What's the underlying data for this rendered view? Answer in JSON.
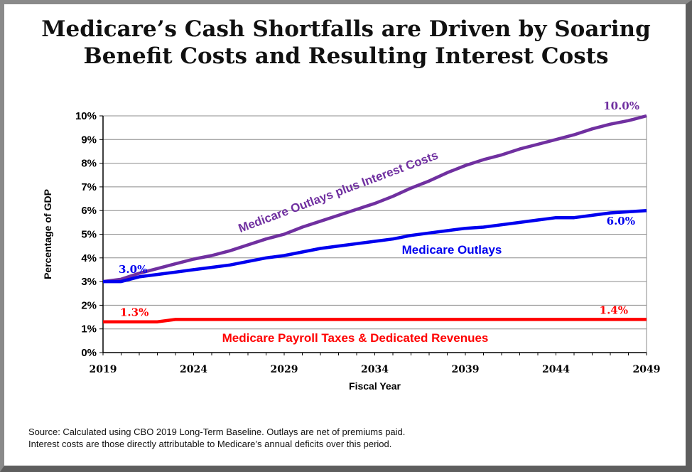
{
  "title": {
    "line1": "Medicare’s Cash Shortfalls are Driven by Soaring",
    "line2": "Benefit Costs and Resulting Interest Costs"
  },
  "source": {
    "line1": "Source: Calculated using CBO 2019 Long-Term Baseline. Outlays are net of premiums paid.",
    "line2": "Interest costs are those directly attributable to Medicare’s annual deficits over this period."
  },
  "chart_data": {
    "type": "line",
    "xlabel": "Fiscal Year",
    "ylabel": "Percentage of GDP",
    "xlim": [
      2019,
      2049
    ],
    "ylim": [
      0,
      10
    ],
    "x_ticks": [
      "2019",
      "2024",
      "2029",
      "2034",
      "2039",
      "2044",
      "2049"
    ],
    "y_ticks": [
      "0%",
      "1%",
      "2%",
      "3%",
      "4%",
      "5%",
      "6%",
      "7%",
      "8%",
      "9%",
      "10%"
    ],
    "grid": true,
    "legend": "none (series labeled directly on chart)",
    "x": [
      2019,
      2020,
      2021,
      2022,
      2023,
      2024,
      2025,
      2026,
      2027,
      2028,
      2029,
      2030,
      2031,
      2032,
      2033,
      2034,
      2035,
      2036,
      2037,
      2038,
      2039,
      2040,
      2041,
      2042,
      2043,
      2044,
      2045,
      2046,
      2047,
      2048,
      2049
    ],
    "series": [
      {
        "name": "Medicare Outlays plus Interest Costs",
        "color": "#7030a0",
        "values": [
          3.0,
          3.1,
          3.35,
          3.55,
          3.75,
          3.95,
          4.1,
          4.3,
          4.55,
          4.8,
          5.0,
          5.3,
          5.55,
          5.8,
          6.05,
          6.3,
          6.6,
          6.95,
          7.25,
          7.6,
          7.9,
          8.15,
          8.35,
          8.6,
          8.8,
          9.0,
          9.2,
          9.45,
          9.65,
          9.8,
          10.0
        ],
        "value_labels": [
          {
            "index": 30,
            "text": "10.0%"
          }
        ]
      },
      {
        "name": "Medicare Outlays",
        "color": "#0000ee",
        "values": [
          3.0,
          3.0,
          3.2,
          3.3,
          3.4,
          3.5,
          3.6,
          3.7,
          3.85,
          4.0,
          4.1,
          4.25,
          4.4,
          4.5,
          4.6,
          4.7,
          4.8,
          4.95,
          5.05,
          5.15,
          5.25,
          5.3,
          5.4,
          5.5,
          5.6,
          5.7,
          5.7,
          5.8,
          5.9,
          5.95,
          6.0
        ],
        "value_labels": [
          {
            "index": 0,
            "text": "3.0%"
          },
          {
            "index": 30,
            "text": "6.0%"
          }
        ]
      },
      {
        "name": "Medicare Payroll Taxes & Dedicated Revenues",
        "color": "#ff0000",
        "values": [
          1.3,
          1.3,
          1.3,
          1.3,
          1.4,
          1.4,
          1.4,
          1.4,
          1.4,
          1.4,
          1.4,
          1.4,
          1.4,
          1.4,
          1.4,
          1.4,
          1.4,
          1.4,
          1.4,
          1.4,
          1.4,
          1.4,
          1.4,
          1.4,
          1.4,
          1.4,
          1.4,
          1.4,
          1.4,
          1.4,
          1.4
        ],
        "value_labels": [
          {
            "index": 0,
            "text": "1.3%"
          },
          {
            "index": 30,
            "text": "1.4%"
          }
        ]
      }
    ]
  }
}
